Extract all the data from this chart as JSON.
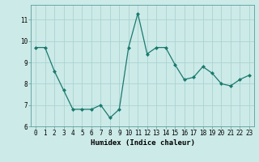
{
  "x": [
    0,
    1,
    2,
    3,
    4,
    5,
    6,
    7,
    8,
    9,
    10,
    11,
    12,
    13,
    14,
    15,
    16,
    17,
    18,
    19,
    20,
    21,
    22,
    23
  ],
  "y": [
    9.7,
    9.7,
    8.6,
    7.7,
    6.8,
    6.8,
    6.8,
    7.0,
    6.4,
    6.8,
    9.7,
    11.3,
    9.4,
    9.7,
    9.7,
    8.9,
    8.2,
    8.3,
    8.8,
    8.5,
    8.0,
    7.9,
    8.2,
    8.4
  ],
  "xlabel": "Humidex (Indice chaleur)",
  "ylim": [
    6,
    11.7
  ],
  "yticks": [
    6,
    7,
    8,
    9,
    10,
    11
  ],
  "xticks": [
    0,
    1,
    2,
    3,
    4,
    5,
    6,
    7,
    8,
    9,
    10,
    11,
    12,
    13,
    14,
    15,
    16,
    17,
    18,
    19,
    20,
    21,
    22,
    23
  ],
  "line_color": "#1a7a6e",
  "marker": "D",
  "marker_size": 2.0,
  "bg_color": "#cceae8",
  "grid_color": "#aad4d1",
  "fig_bg": "#cceae8",
  "tick_fontsize": 5.5,
  "xlabel_fontsize": 6.5,
  "linewidth": 0.9
}
